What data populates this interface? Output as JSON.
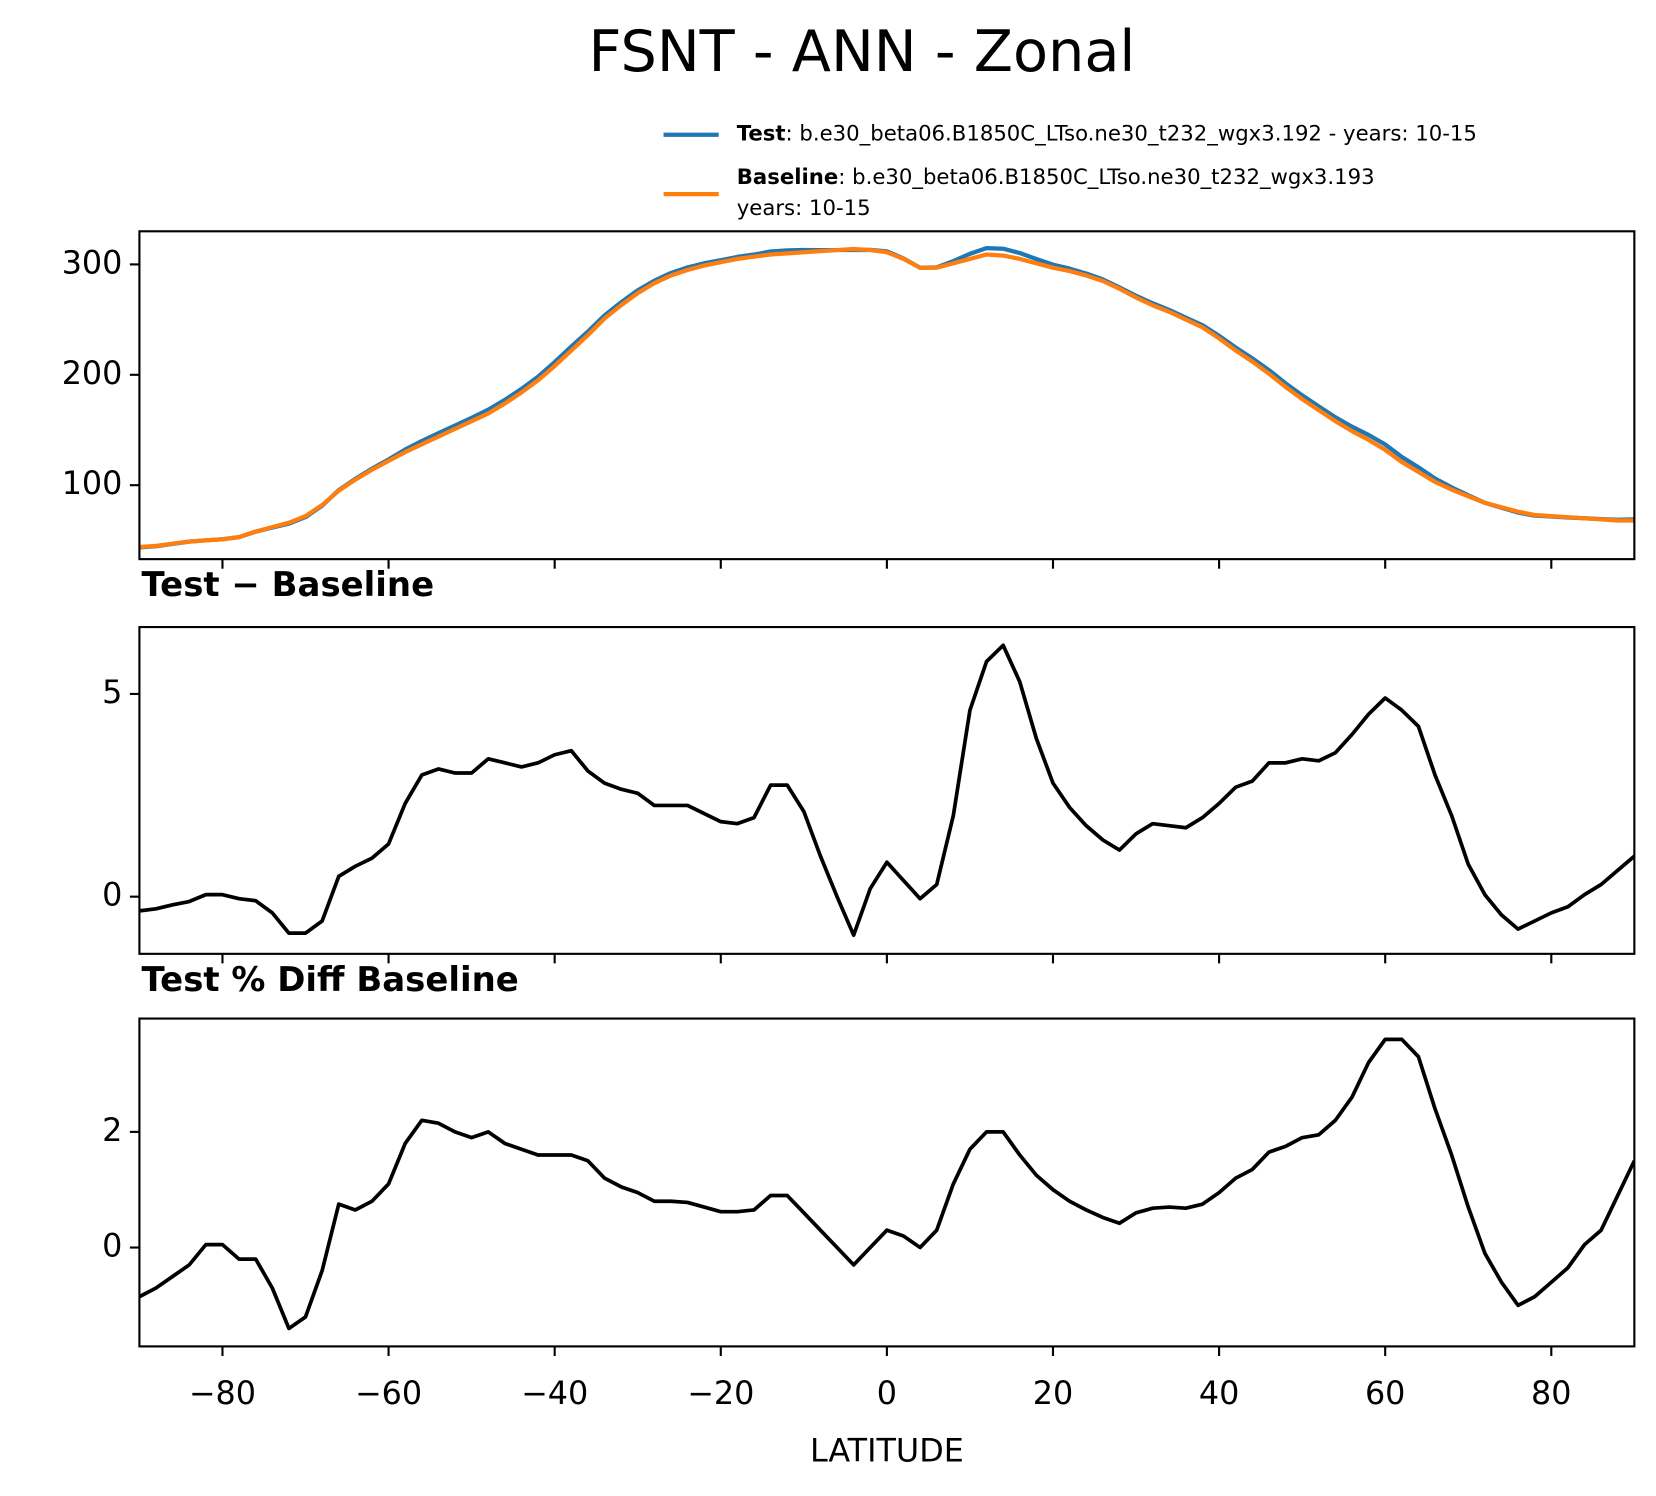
{
  "title": "FSNT - ANN - Zonal",
  "chart_data": [
    {
      "type": "line",
      "x": [
        -90,
        -88,
        -86,
        -84,
        -82,
        -80,
        -78,
        -76,
        -74,
        -72,
        -70,
        -68,
        -66,
        -64,
        -62,
        -60,
        -58,
        -56,
        -54,
        -52,
        -50,
        -48,
        -46,
        -44,
        -42,
        -40,
        -38,
        -36,
        -34,
        -32,
        -30,
        -28,
        -26,
        -24,
        -22,
        -20,
        -18,
        -16,
        -14,
        -12,
        -10,
        -8,
        -6,
        -4,
        -2,
        0,
        2,
        4,
        6,
        8,
        10,
        12,
        14,
        16,
        18,
        20,
        22,
        24,
        26,
        28,
        30,
        32,
        34,
        36,
        38,
        40,
        42,
        44,
        46,
        48,
        50,
        52,
        54,
        56,
        58,
        60,
        62,
        64,
        66,
        68,
        70,
        72,
        74,
        76,
        78,
        80,
        82,
        84,
        86,
        88,
        90
      ],
      "xlim": [
        -90,
        90
      ],
      "xticks": [
        -80,
        -60,
        -40,
        -20,
        0,
        20,
        40,
        60,
        80
      ],
      "ylim": [
        33,
        330
      ],
      "yticks": [
        100,
        200,
        300
      ],
      "series": [
        {
          "name": "Test",
          "label": [
            ": b.e30_beta06.B1850C_LTso.ne30_t232_wgx3.192 - years: 10-15"
          ],
          "color": "#1f77b4",
          "values": [
            43.65,
            44.7,
            46.8,
            48.88,
            50.05,
            51.05,
            52.95,
            57.9,
            61.6,
            65.1,
            71.1,
            81.4,
            95.5,
            105.75,
            114.95,
            123.3,
            132.3,
            140,
            147.15,
            154.05,
            161.05,
            168.4,
            177.3,
            187.2,
            198.3,
            211.5,
            225.6,
            239.1,
            253.8,
            265.65,
            276.55,
            285.25,
            292.25,
            297.25,
            301.05,
            303.85,
            306.8,
            308.95,
            311.75,
            312.75,
            313.1,
            313,
            313,
            313.05,
            313.2,
            311.85,
            305.4,
            296.95,
            297.3,
            303,
            309.6,
            314.8,
            314.2,
            310.3,
            304.9,
            299.8,
            296.2,
            291.75,
            286.4,
            279.15,
            271.55,
            264.8,
            258.75,
            251.7,
            244.95,
            235.3,
            224.7,
            214.85,
            204.3,
            192.3,
            181.4,
            171.35,
            161.55,
            153,
            145.5,
            136.9,
            125.6,
            116.2,
            106,
            98,
            90.8,
            84.05,
            79.55,
            75.2,
            72.4,
            71.6,
            70.75,
            70.05,
            69.3,
            68.65,
            69
          ]
        },
        {
          "name": "Baseline",
          "label": [
            ": b.e30_beta06.B1850C_LTso.ne30_t232_wgx3.193",
            "years: 10-15"
          ],
          "color": "#ff7f0e",
          "values": [
            44,
            45,
            47,
            49,
            50,
            51,
            53,
            58,
            62,
            66,
            72,
            82,
            95,
            105,
            114,
            122,
            130,
            137,
            144,
            151,
            158,
            165,
            174,
            184,
            195,
            208,
            222,
            236,
            251,
            263,
            274,
            283,
            290,
            295,
            299,
            302,
            305,
            307,
            309,
            310,
            311,
            312,
            313,
            314,
            313,
            311,
            305,
            297,
            297,
            301,
            305,
            309,
            308,
            305,
            301,
            297,
            294,
            290,
            285,
            278,
            270,
            263,
            257,
            250,
            243,
            233,
            222,
            212,
            201,
            189,
            178,
            168,
            158,
            149,
            141,
            132,
            121,
            112,
            103,
            96,
            90,
            84,
            80,
            76,
            73,
            72,
            71,
            70,
            69,
            68,
            68
          ]
        }
      ]
    },
    {
      "type": "line",
      "title": "Test − Baseline",
      "x": [
        -90,
        -88,
        -86,
        -84,
        -82,
        -80,
        -78,
        -76,
        -74,
        -72,
        -70,
        -68,
        -66,
        -64,
        -62,
        -60,
        -58,
        -56,
        -54,
        -52,
        -50,
        -48,
        -46,
        -44,
        -42,
        -40,
        -38,
        -36,
        -34,
        -32,
        -30,
        -28,
        -26,
        -24,
        -22,
        -20,
        -18,
        -16,
        -14,
        -12,
        -10,
        -8,
        -6,
        -4,
        -2,
        0,
        2,
        4,
        6,
        8,
        10,
        12,
        14,
        16,
        18,
        20,
        22,
        24,
        26,
        28,
        30,
        32,
        34,
        36,
        38,
        40,
        42,
        44,
        46,
        48,
        50,
        52,
        54,
        56,
        58,
        60,
        62,
        64,
        66,
        68,
        70,
        72,
        74,
        76,
        78,
        80,
        82,
        84,
        86,
        88,
        90
      ],
      "xlim": [
        -90,
        90
      ],
      "xticks": [
        -80,
        -60,
        -40,
        -20,
        0,
        20,
        40,
        60,
        80
      ],
      "ylim": [
        -1.41,
        6.65
      ],
      "yticks": [
        0,
        5
      ],
      "series": [
        {
          "color": "#000000",
          "values": [
            -0.35,
            -0.3,
            -0.2,
            -0.12,
            0.05,
            0.05,
            -0.05,
            -0.1,
            -0.4,
            -0.9,
            -0.9,
            -0.6,
            0.5,
            0.75,
            0.95,
            1.3,
            2.3,
            3.0,
            3.15,
            3.05,
            3.05,
            3.4,
            3.3,
            3.2,
            3.3,
            3.5,
            3.6,
            3.1,
            2.8,
            2.65,
            2.55,
            2.25,
            2.25,
            2.25,
            2.05,
            1.85,
            1.8,
            1.95,
            2.75,
            2.75,
            2.1,
            1.0,
            0.0,
            -0.95,
            0.2,
            0.85,
            0.4,
            -0.05,
            0.3,
            2.0,
            4.6,
            5.8,
            6.2,
            5.3,
            3.9,
            2.8,
            2.2,
            1.75,
            1.4,
            1.15,
            1.55,
            1.8,
            1.75,
            1.7,
            1.95,
            2.3,
            2.7,
            2.85,
            3.3,
            3.3,
            3.4,
            3.35,
            3.55,
            4.0,
            4.5,
            4.9,
            4.6,
            4.2,
            3.0,
            2.0,
            0.8,
            0.05,
            -0.45,
            -0.8,
            -0.6,
            -0.4,
            -0.25,
            0.05,
            0.3,
            0.65,
            1.0
          ]
        }
      ]
    },
    {
      "type": "line",
      "title": "Test % Diff Baseline",
      "xlabel": "LATITUDE",
      "x": [
        -90,
        -88,
        -86,
        -84,
        -82,
        -80,
        -78,
        -76,
        -74,
        -72,
        -70,
        -68,
        -66,
        -64,
        -62,
        -60,
        -58,
        -56,
        -54,
        -52,
        -50,
        -48,
        -46,
        -44,
        -42,
        -40,
        -38,
        -36,
        -34,
        -32,
        -30,
        -28,
        -26,
        -24,
        -22,
        -20,
        -18,
        -16,
        -14,
        -12,
        -10,
        -8,
        -6,
        -4,
        -2,
        0,
        2,
        4,
        6,
        8,
        10,
        12,
        14,
        16,
        18,
        20,
        22,
        24,
        26,
        28,
        30,
        32,
        34,
        36,
        38,
        40,
        42,
        44,
        46,
        48,
        50,
        52,
        54,
        56,
        58,
        60,
        62,
        64,
        66,
        68,
        70,
        72,
        74,
        76,
        78,
        80,
        82,
        84,
        86,
        88,
        90
      ],
      "xlim": [
        -90,
        90
      ],
      "xticks": [
        {
          "value": -80,
          "label": "−80"
        },
        {
          "value": -60,
          "label": "−60"
        },
        {
          "value": -40,
          "label": "−40"
        },
        {
          "value": -20,
          "label": "−20"
        },
        0,
        20,
        40,
        60,
        80
      ],
      "ylim": [
        -1.71,
        3.96
      ],
      "yticks": [
        0,
        2
      ],
      "series": [
        {
          "color": "#000000",
          "values": [
            -0.85,
            -0.7,
            -0.5,
            -0.3,
            0.05,
            0.05,
            -0.2,
            -0.2,
            -0.7,
            -1.4,
            -1.2,
            -0.4,
            0.75,
            0.65,
            0.8,
            1.1,
            1.8,
            2.2,
            2.15,
            2.0,
            1.9,
            2.0,
            1.8,
            1.7,
            1.6,
            1.6,
            1.6,
            1.5,
            1.2,
            1.05,
            0.95,
            0.8,
            0.8,
            0.78,
            0.7,
            0.62,
            0.62,
            0.65,
            0.9,
            0.9,
            0.6,
            0.3,
            0.0,
            -0.3,
            0.0,
            0.3,
            0.2,
            0.0,
            0.3,
            1.1,
            1.7,
            2.0,
            2.0,
            1.6,
            1.25,
            1.0,
            0.8,
            0.65,
            0.52,
            0.42,
            0.6,
            0.68,
            0.7,
            0.68,
            0.75,
            0.95,
            1.2,
            1.35,
            1.65,
            1.75,
            1.9,
            1.95,
            2.2,
            2.6,
            3.2,
            3.6,
            3.6,
            3.3,
            2.4,
            1.6,
            0.7,
            -0.1,
            -0.6,
            -1.0,
            -0.85,
            -0.6,
            -0.35,
            0.05,
            0.3,
            0.9,
            1.5
          ]
        }
      ]
    }
  ]
}
